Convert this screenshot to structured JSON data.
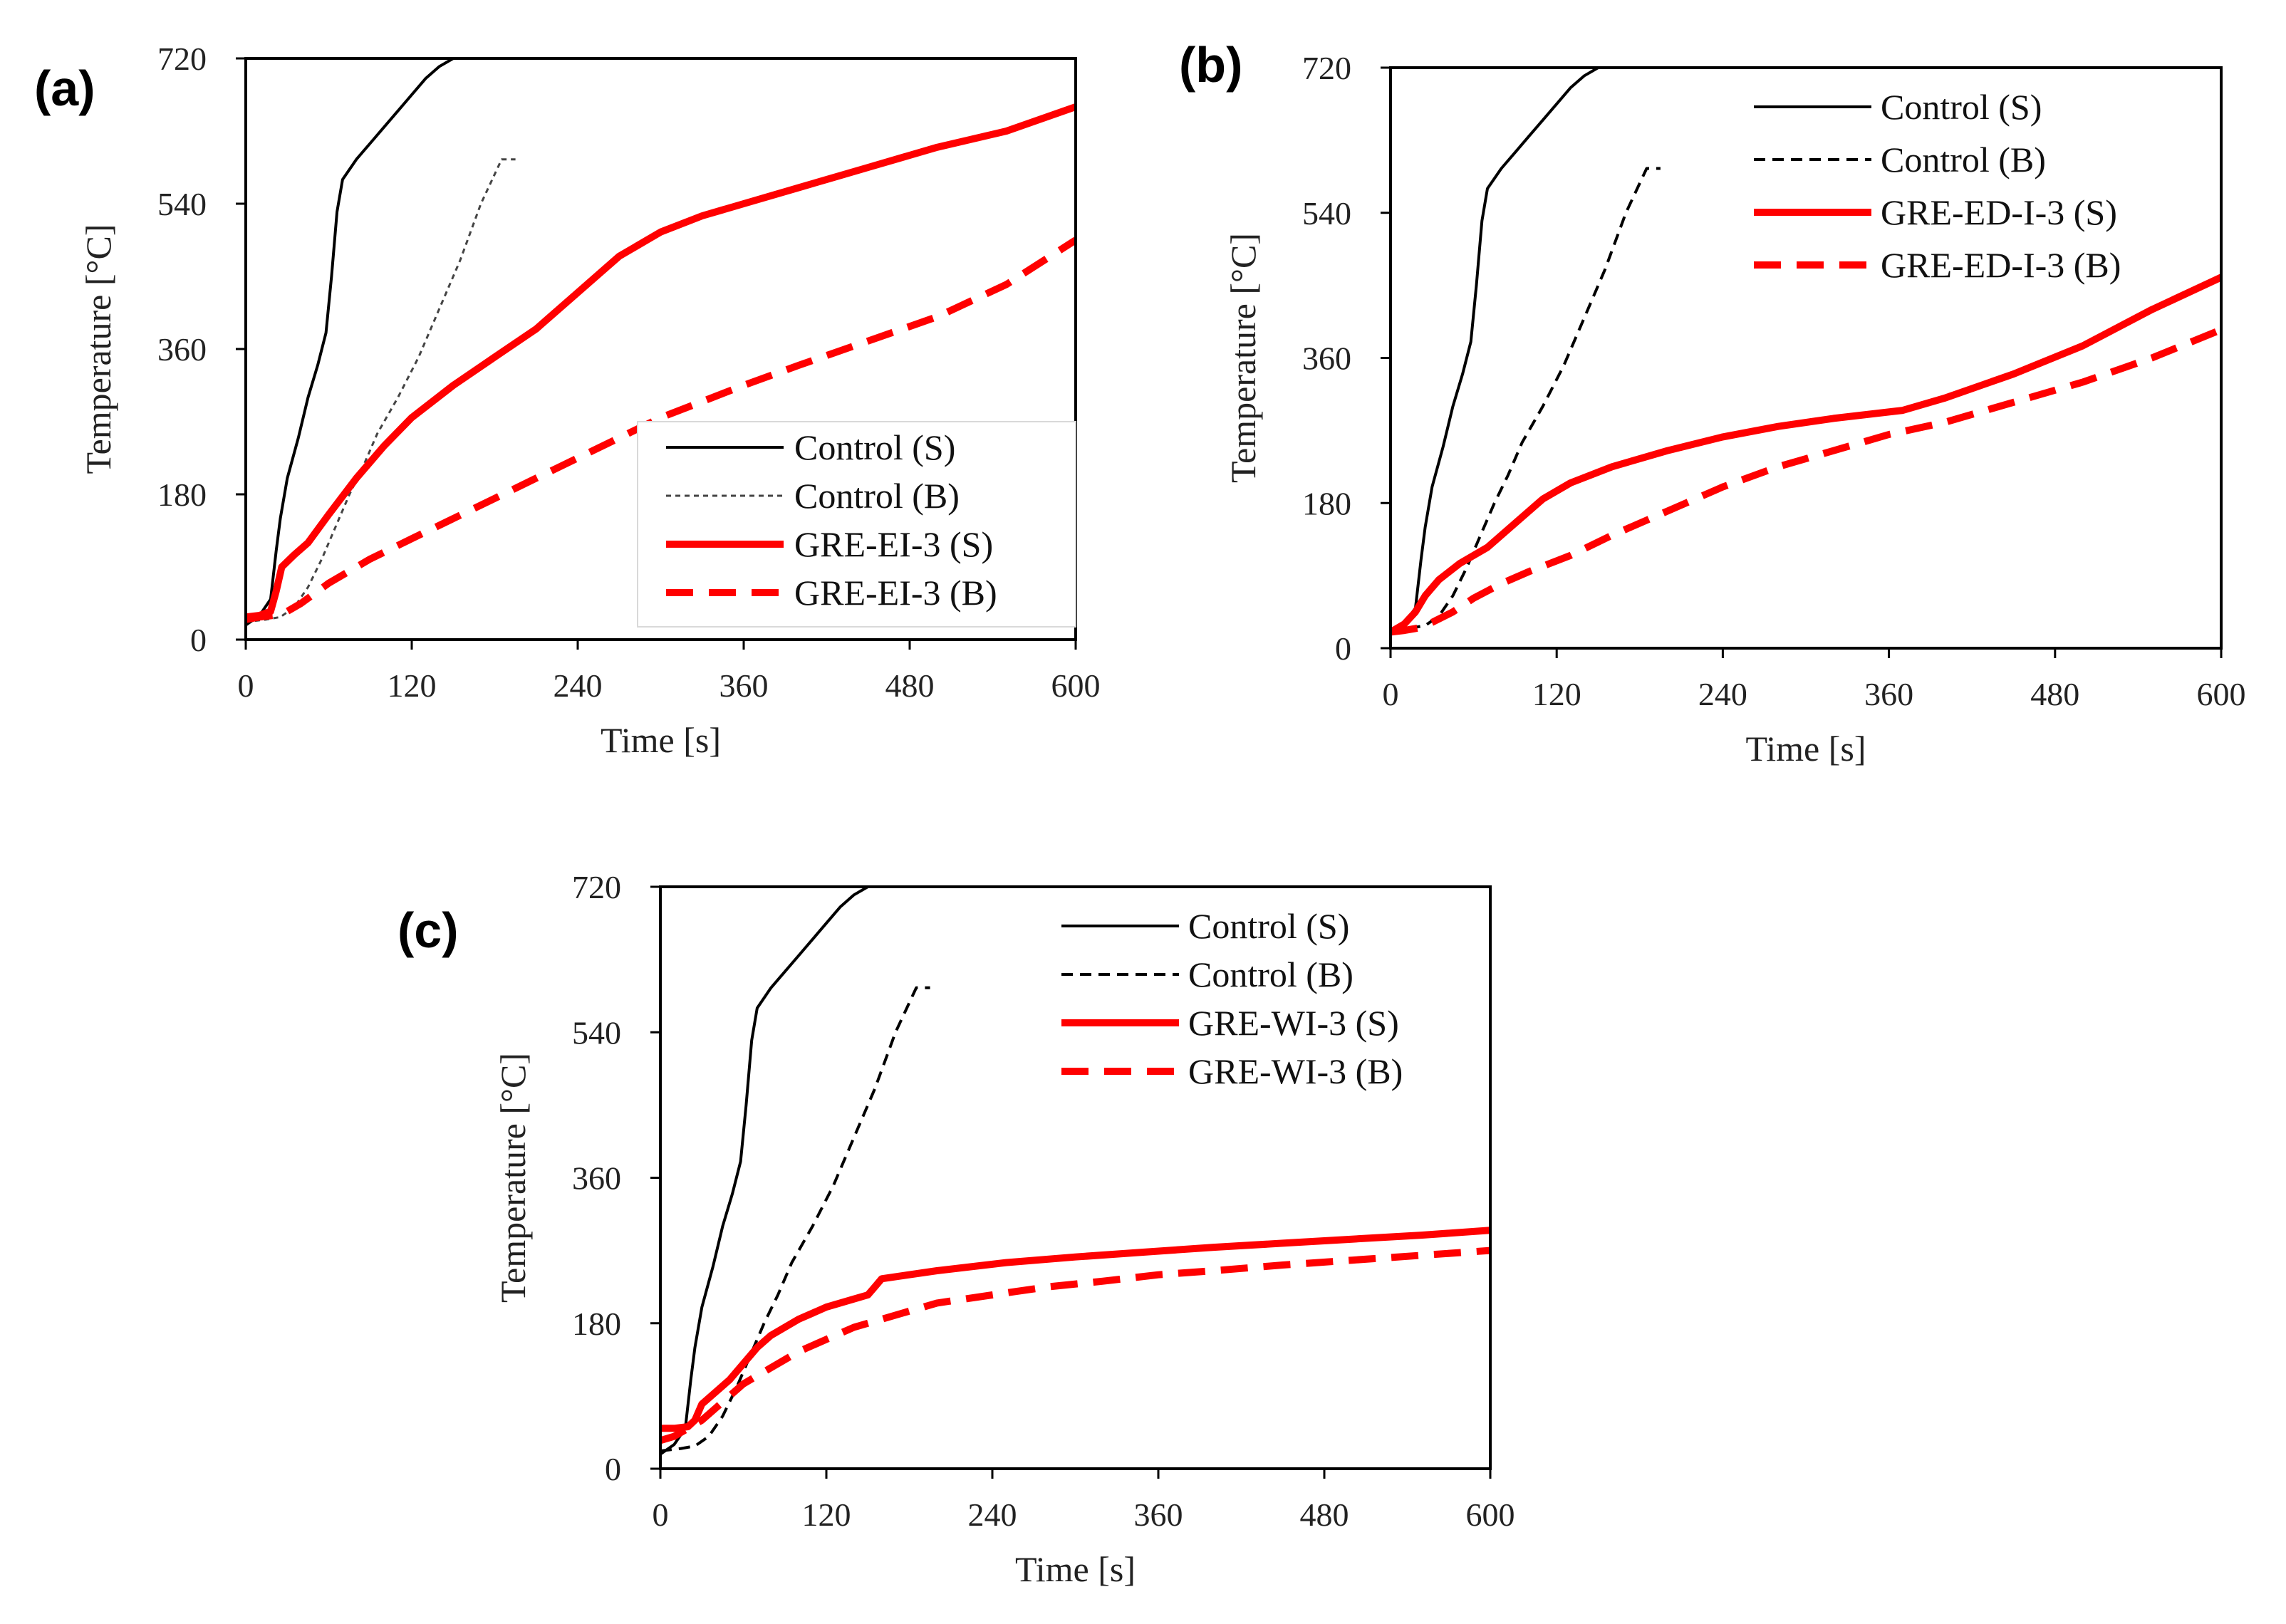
{
  "chart_data": [
    {
      "panel": "(a)",
      "type": "line",
      "xlabel": "Time [s]",
      "ylabel": "Temperature [°C]",
      "xlim": [
        0,
        600
      ],
      "ylim": [
        0,
        720
      ],
      "xticks": [
        0,
        120,
        240,
        360,
        480,
        600
      ],
      "yticks": [
        0,
        180,
        360,
        540,
        720
      ],
      "legend_position": "bottom-right",
      "series": [
        {
          "name": "Control (S)",
          "color": "#000000",
          "style": "solid-thin",
          "x": [
            0,
            10,
            18,
            22,
            25,
            30,
            38,
            45,
            52,
            58,
            62,
            66,
            70,
            80,
            90,
            100,
            110,
            120,
            130,
            140,
            150,
            155
          ],
          "y": [
            18,
            30,
            50,
            110,
            150,
            200,
            250,
            300,
            340,
            380,
            450,
            530,
            570,
            595,
            615,
            635,
            655,
            675,
            695,
            710,
            720,
            720
          ]
        },
        {
          "name": "Control (B)",
          "color": "#444444",
          "style": "dotted-thin",
          "x": [
            0,
            15,
            25,
            35,
            45,
            55,
            65,
            75,
            85,
            95,
            110,
            125,
            140,
            155,
            170,
            185,
            195
          ],
          "y": [
            22,
            25,
            28,
            40,
            65,
            100,
            140,
            180,
            215,
            255,
            300,
            350,
            410,
            470,
            540,
            595,
            595
          ]
        },
        {
          "name": "GRE-EI-3 (S)",
          "color": "#ff0000",
          "style": "solid-thick",
          "x": [
            0,
            10,
            18,
            22,
            26,
            35,
            45,
            60,
            80,
            100,
            120,
            150,
            180,
            210,
            240,
            270,
            300,
            330,
            360,
            400,
            450,
            500,
            550,
            600
          ],
          "y": [
            28,
            30,
            35,
            60,
            90,
            105,
            120,
            155,
            200,
            240,
            275,
            315,
            350,
            385,
            430,
            475,
            505,
            525,
            540,
            560,
            585,
            610,
            630,
            660
          ]
        },
        {
          "name": "GRE-EI-3 (B)",
          "color": "#ff0000",
          "style": "dashed-thick",
          "x": [
            0,
            10,
            20,
            30,
            40,
            60,
            90,
            120,
            150,
            180,
            210,
            240,
            270,
            300,
            330,
            360,
            400,
            450,
            500,
            550,
            600
          ],
          "y": [
            25,
            28,
            30,
            35,
            45,
            70,
            100,
            125,
            150,
            175,
            200,
            225,
            250,
            275,
            295,
            315,
            340,
            370,
            400,
            440,
            495
          ]
        }
      ]
    },
    {
      "panel": "(b)",
      "type": "line",
      "xlabel": "Time [s]",
      "ylabel": "Temperature [°C]",
      "xlim": [
        0,
        600
      ],
      "ylim": [
        0,
        720
      ],
      "xticks": [
        0,
        120,
        240,
        360,
        480,
        600
      ],
      "yticks": [
        0,
        180,
        360,
        540,
        720
      ],
      "legend_position": "top-right",
      "series": [
        {
          "name": "Control (S)",
          "color": "#000000",
          "style": "solid-thin",
          "x": [
            0,
            10,
            18,
            22,
            25,
            30,
            38,
            45,
            52,
            58,
            62,
            66,
            70,
            80,
            90,
            100,
            110,
            120,
            130,
            140,
            150,
            155
          ],
          "y": [
            18,
            30,
            50,
            110,
            150,
            200,
            250,
            300,
            340,
            380,
            450,
            530,
            570,
            595,
            615,
            635,
            655,
            675,
            695,
            710,
            720,
            720
          ]
        },
        {
          "name": "Control (B)",
          "color": "#000000",
          "style": "dashed-thin",
          "x": [
            0,
            15,
            25,
            35,
            45,
            55,
            65,
            75,
            85,
            95,
            110,
            125,
            140,
            155,
            170,
            185,
            195
          ],
          "y": [
            22,
            25,
            28,
            40,
            65,
            100,
            140,
            180,
            215,
            255,
            300,
            350,
            410,
            470,
            540,
            595,
            595
          ]
        },
        {
          "name": "GRE-ED-I-3 (S)",
          "color": "#ff0000",
          "style": "solid-thick",
          "x": [
            0,
            10,
            18,
            25,
            35,
            50,
            70,
            90,
            110,
            130,
            160,
            200,
            240,
            280,
            320,
            370,
            400,
            450,
            500,
            550,
            600
          ],
          "y": [
            20,
            30,
            45,
            65,
            85,
            105,
            125,
            155,
            185,
            205,
            225,
            245,
            262,
            275,
            285,
            295,
            310,
            340,
            375,
            420,
            460
          ]
        },
        {
          "name": "GRE-ED-I-3 (B)",
          "color": "#ff0000",
          "style": "dashed-thick",
          "x": [
            0,
            10,
            20,
            30,
            45,
            60,
            80,
            100,
            130,
            160,
            200,
            240,
            280,
            320,
            360,
            400,
            450,
            500,
            550,
            600
          ],
          "y": [
            20,
            22,
            25,
            32,
            45,
            62,
            80,
            95,
            115,
            140,
            170,
            200,
            225,
            245,
            265,
            280,
            305,
            330,
            360,
            395
          ]
        }
      ]
    },
    {
      "panel": "(c)",
      "type": "line",
      "xlabel": "Time [s]",
      "ylabel": "Temperature [°C]",
      "xlim": [
        0,
        600
      ],
      "ylim": [
        0,
        720
      ],
      "xticks": [
        0,
        120,
        240,
        360,
        480,
        600
      ],
      "yticks": [
        0,
        180,
        360,
        540,
        720
      ],
      "legend_position": "top-right",
      "series": [
        {
          "name": "Control (S)",
          "color": "#000000",
          "style": "solid-thin",
          "x": [
            0,
            10,
            18,
            22,
            25,
            30,
            38,
            45,
            52,
            58,
            62,
            66,
            70,
            80,
            90,
            100,
            110,
            120,
            130,
            140,
            150,
            155
          ],
          "y": [
            18,
            30,
            50,
            110,
            150,
            200,
            250,
            300,
            340,
            380,
            450,
            530,
            570,
            595,
            615,
            635,
            655,
            675,
            695,
            710,
            720,
            720
          ]
        },
        {
          "name": "Control (B)",
          "color": "#000000",
          "style": "dashed-thin",
          "x": [
            0,
            15,
            25,
            35,
            45,
            55,
            65,
            75,
            85,
            95,
            110,
            125,
            140,
            155,
            170,
            185,
            195
          ],
          "y": [
            22,
            25,
            28,
            40,
            65,
            100,
            140,
            180,
            215,
            255,
            300,
            350,
            410,
            470,
            540,
            595,
            595
          ]
        },
        {
          "name": "GRE-WI-3 (S)",
          "color": "#ff0000",
          "style": "solid-thick",
          "x": [
            0,
            10,
            20,
            25,
            30,
            40,
            50,
            60,
            70,
            80,
            100,
            120,
            140,
            150,
            155,
            160,
            200,
            250,
            300,
            350,
            400,
            450,
            500,
            550,
            600
          ],
          "y": [
            50,
            50,
            52,
            60,
            80,
            95,
            110,
            130,
            150,
            165,
            185,
            200,
            210,
            215,
            225,
            235,
            245,
            255,
            262,
            268,
            274,
            279,
            284,
            289,
            295
          ]
        },
        {
          "name": "GRE-WI-3 (B)",
          "color": "#ff0000",
          "style": "dashed-thick",
          "x": [
            0,
            10,
            20,
            30,
            40,
            50,
            60,
            70,
            80,
            100,
            120,
            140,
            160,
            180,
            200,
            240,
            280,
            320,
            360,
            400,
            450,
            500,
            550,
            600
          ],
          "y": [
            35,
            40,
            50,
            60,
            75,
            90,
            105,
            115,
            125,
            145,
            160,
            175,
            185,
            195,
            205,
            215,
            225,
            232,
            240,
            245,
            252,
            258,
            264,
            270
          ]
        }
      ]
    }
  ]
}
